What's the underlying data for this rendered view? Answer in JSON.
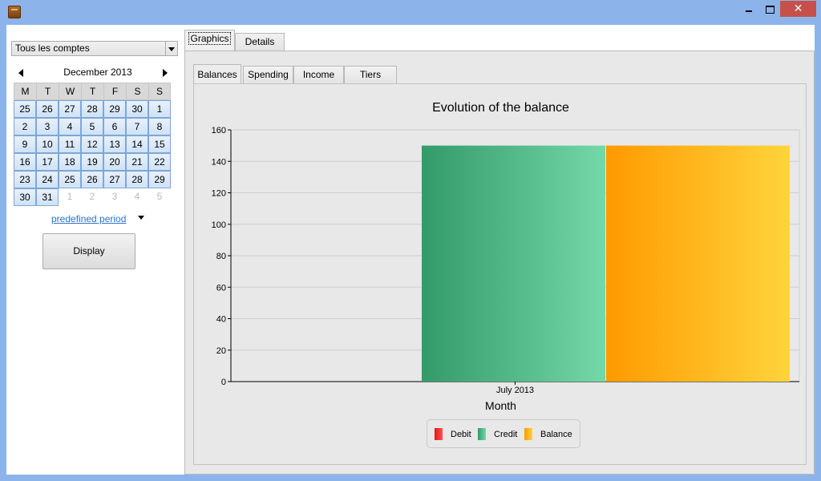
{
  "window": {
    "close_label": "✕"
  },
  "left": {
    "account_select": "Tous les comptes",
    "calendar": {
      "month_label": "December 2013",
      "weekdays": [
        "M",
        "T",
        "W",
        "T",
        "F",
        "S",
        "S"
      ],
      "weeks": [
        [
          "25",
          "26",
          "27",
          "28",
          "29",
          "30",
          "1"
        ],
        [
          "2",
          "3",
          "4",
          "5",
          "6",
          "7",
          "8"
        ],
        [
          "9",
          "10",
          "11",
          "12",
          "13",
          "14",
          "15"
        ],
        [
          "16",
          "17",
          "18",
          "19",
          "20",
          "21",
          "22"
        ],
        [
          "23",
          "24",
          "25",
          "26",
          "27",
          "28",
          "29"
        ],
        [
          "30",
          "31",
          "1",
          "2",
          "3",
          "4",
          "5"
        ]
      ],
      "other_month_last_row_from": 2
    },
    "period_link": "predefined period",
    "display_button": "Display"
  },
  "tabs": {
    "outer": [
      "Graphics",
      "Details"
    ],
    "inner": [
      "Balances",
      "Spending",
      "Income",
      "Tiers"
    ]
  },
  "chart_data": {
    "type": "bar",
    "title": "Evolution of the balance",
    "xlabel": "Month",
    "ylabel": "",
    "categories": [
      "July 2013"
    ],
    "ylim": [
      0,
      160
    ],
    "yticks": [
      0,
      20,
      40,
      60,
      80,
      100,
      120,
      140,
      160
    ],
    "grid": true,
    "legend_placement": "bottom",
    "series": [
      {
        "name": "Debit",
        "values": [
          0
        ],
        "color": "#ee2222"
      },
      {
        "name": "Credit",
        "values": [
          150
        ],
        "color": "#3a9d6c"
      },
      {
        "name": "Balance",
        "values": [
          150
        ],
        "color": "#ffa000"
      }
    ]
  },
  "colors": {
    "accent_link": "#2a73c9",
    "close_button": "#c7504a",
    "title_bar": "#8cb4ea"
  }
}
